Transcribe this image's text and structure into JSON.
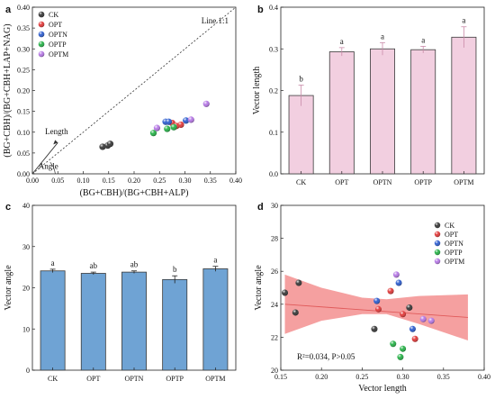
{
  "colors": {
    "CK": "#3a3a3a",
    "OPT": "#e23b3b",
    "OPTN": "#2f5fd0",
    "OPTP": "#29b34a",
    "OPTM": "#b77ae6",
    "bar_b": "#f2cfe0",
    "bar_b_edge": "#3a3a3a",
    "bar_c": "#6fa3d4",
    "bar_c_edge": "#3a3a3a",
    "ci_band": "#f28080",
    "fit_line": "#e05a5a"
  },
  "chart_data": [
    {
      "panel": "a",
      "type": "scatter",
      "xlabel": "(BG+CBH)/(BG+CBH+ALP)",
      "ylabel": "(BG+CBH)/(BG+CBH+LAP+NAG)",
      "xlim": [
        0,
        0.4
      ],
      "ylim": [
        0,
        0.4
      ],
      "xticks": [
        "0.00",
        "0.05",
        "0.10",
        "0.15",
        "0.20",
        "0.25",
        "0.30",
        "0.35",
        "0.40"
      ],
      "yticks": [
        "0.00",
        "0.05",
        "0.10",
        "0.15",
        "0.20",
        "0.25",
        "0.30",
        "0.35",
        "0.40"
      ],
      "reference_line_label": "Line 1:1",
      "vector_labels": {
        "length": "Length",
        "angle": "Angle"
      },
      "legend": [
        "CK",
        "OPT",
        "OPTN",
        "OPTP",
        "OPTM"
      ],
      "legend_position": "top-left",
      "series": [
        {
          "name": "CK",
          "points": [
            [
              0.138,
              0.065
            ],
            [
              0.148,
              0.068
            ],
            [
              0.153,
              0.072
            ]
          ]
        },
        {
          "name": "OPT",
          "points": [
            [
              0.275,
              0.122
            ],
            [
              0.283,
              0.115
            ],
            [
              0.292,
              0.118
            ]
          ]
        },
        {
          "name": "OPTN",
          "points": [
            [
              0.262,
              0.125
            ],
            [
              0.268,
              0.125
            ],
            [
              0.302,
              0.128
            ]
          ]
        },
        {
          "name": "OPTP",
          "points": [
            [
              0.238,
              0.098
            ],
            [
              0.265,
              0.108
            ],
            [
              0.278,
              0.112
            ]
          ]
        },
        {
          "name": "OPTM",
          "points": [
            [
              0.245,
              0.11
            ],
            [
              0.312,
              0.13
            ],
            [
              0.342,
              0.168
            ]
          ]
        }
      ]
    },
    {
      "panel": "b",
      "type": "bar",
      "ylabel": "Vector length",
      "ylim": [
        0,
        0.4
      ],
      "yticks": [
        "0.0",
        "0.1",
        "0.2",
        "0.3",
        "0.4"
      ],
      "categories": [
        "CK",
        "OPT",
        "OPTN",
        "OPTP",
        "OPTM"
      ],
      "values": [
        0.188,
        0.293,
        0.3,
        0.298,
        0.328
      ],
      "errors": [
        0.025,
        0.01,
        0.015,
        0.008,
        0.025
      ],
      "significance": [
        "b",
        "a",
        "a",
        "a",
        "a"
      ]
    },
    {
      "panel": "c",
      "type": "bar",
      "ylabel": "Vector angle",
      "ylim": [
        0,
        40
      ],
      "yticks": [
        "0",
        "10",
        "20",
        "30",
        "40"
      ],
      "categories": [
        "CK",
        "OPT",
        "OPTN",
        "OPTP",
        "OPTM"
      ],
      "values": [
        24.1,
        23.5,
        23.8,
        22.0,
        24.6
      ],
      "errors": [
        0.4,
        0.3,
        0.3,
        0.9,
        0.6
      ],
      "significance": [
        "a",
        "ab",
        "ab",
        "b",
        "a"
      ]
    },
    {
      "panel": "d",
      "type": "scatter",
      "xlabel": "Vector length",
      "ylabel": "Vector angle",
      "xlim": [
        0.15,
        0.4
      ],
      "ylim": [
        20,
        30
      ],
      "xticks": [
        "0.15",
        "0.20",
        "0.25",
        "0.30",
        "0.35",
        "0.40"
      ],
      "yticks": [
        "20",
        "22",
        "24",
        "26",
        "28",
        "30"
      ],
      "legend": [
        "CK",
        "OPT",
        "OPTN",
        "OPTP",
        "OPTM"
      ],
      "legend_position": "top-right",
      "annotation": "R²=0.034, P>0.05",
      "fit": {
        "x": [
          0.155,
          0.38
        ],
        "y": [
          24.0,
          23.2
        ]
      },
      "ci_band": {
        "x": [
          0.155,
          0.2,
          0.25,
          0.28,
          0.32,
          0.38
        ],
        "upper": [
          25.8,
          25.0,
          24.4,
          24.3,
          24.5,
          24.6
        ],
        "lower": [
          22.2,
          23.0,
          23.4,
          23.4,
          22.8,
          21.8
        ]
      },
      "series": [
        {
          "name": "CK",
          "points": [
            [
              0.155,
              24.7
            ],
            [
              0.172,
              25.3
            ],
            [
              0.168,
              23.5
            ],
            [
              0.265,
              22.5
            ],
            [
              0.308,
              23.8
            ]
          ]
        },
        {
          "name": "OPT",
          "points": [
            [
              0.285,
              24.8
            ],
            [
              0.27,
              23.7
            ],
            [
              0.3,
              23.4
            ],
            [
              0.315,
              21.9
            ]
          ]
        },
        {
          "name": "OPTN",
          "points": [
            [
              0.295,
              25.3
            ],
            [
              0.268,
              24.2
            ],
            [
              0.312,
              22.5
            ]
          ]
        },
        {
          "name": "OPTP",
          "points": [
            [
              0.288,
              21.6
            ],
            [
              0.3,
              21.3
            ],
            [
              0.297,
              20.8
            ]
          ]
        },
        {
          "name": "OPTM",
          "points": [
            [
              0.292,
              25.8
            ],
            [
              0.325,
              23.1
            ],
            [
              0.335,
              23.0
            ]
          ]
        }
      ]
    }
  ]
}
